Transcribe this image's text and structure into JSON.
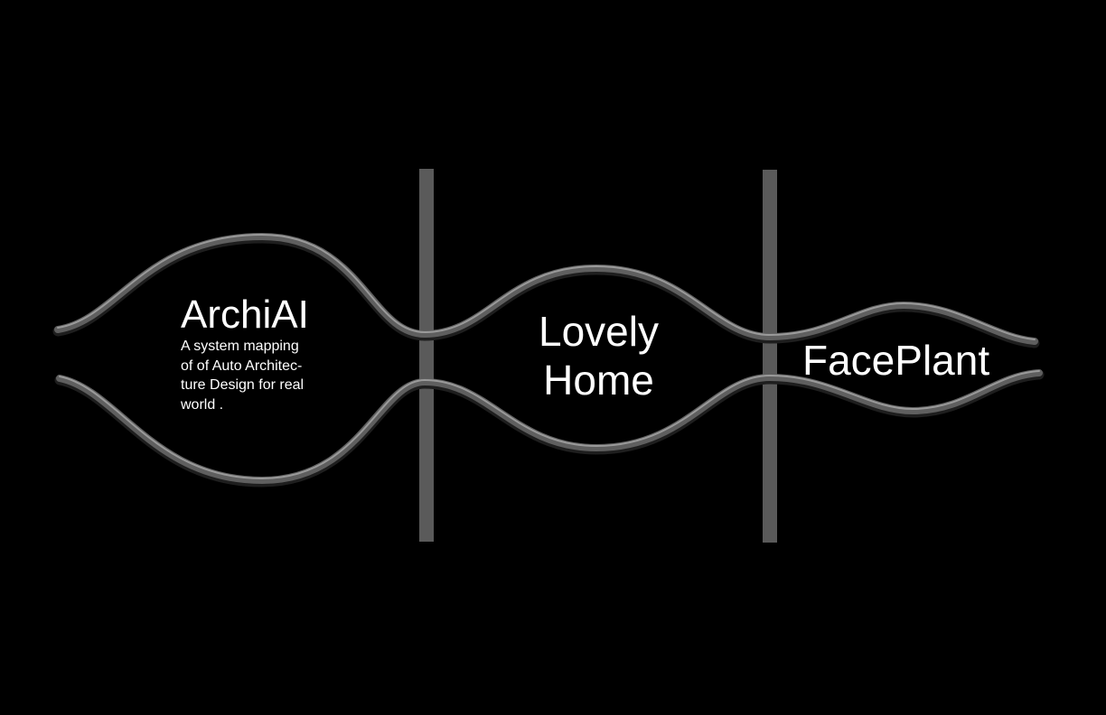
{
  "sections": [
    {
      "id": "archiai",
      "title": "ArchiAI",
      "description_lines": [
        "A system mapping",
        "of of Auto Architec-",
        "ture Design for real",
        "world ."
      ]
    },
    {
      "id": "lovely-home",
      "title_lines": [
        "Lovely",
        "Home"
      ]
    },
    {
      "id": "faceplant",
      "title": "FacePlant"
    }
  ],
  "colors": {
    "background": "#000000",
    "wave_stroke": "#5f5f5f",
    "wave_highlight": "#9a9a9a",
    "divider": "#5a5a5a",
    "text": "#ffffff"
  }
}
